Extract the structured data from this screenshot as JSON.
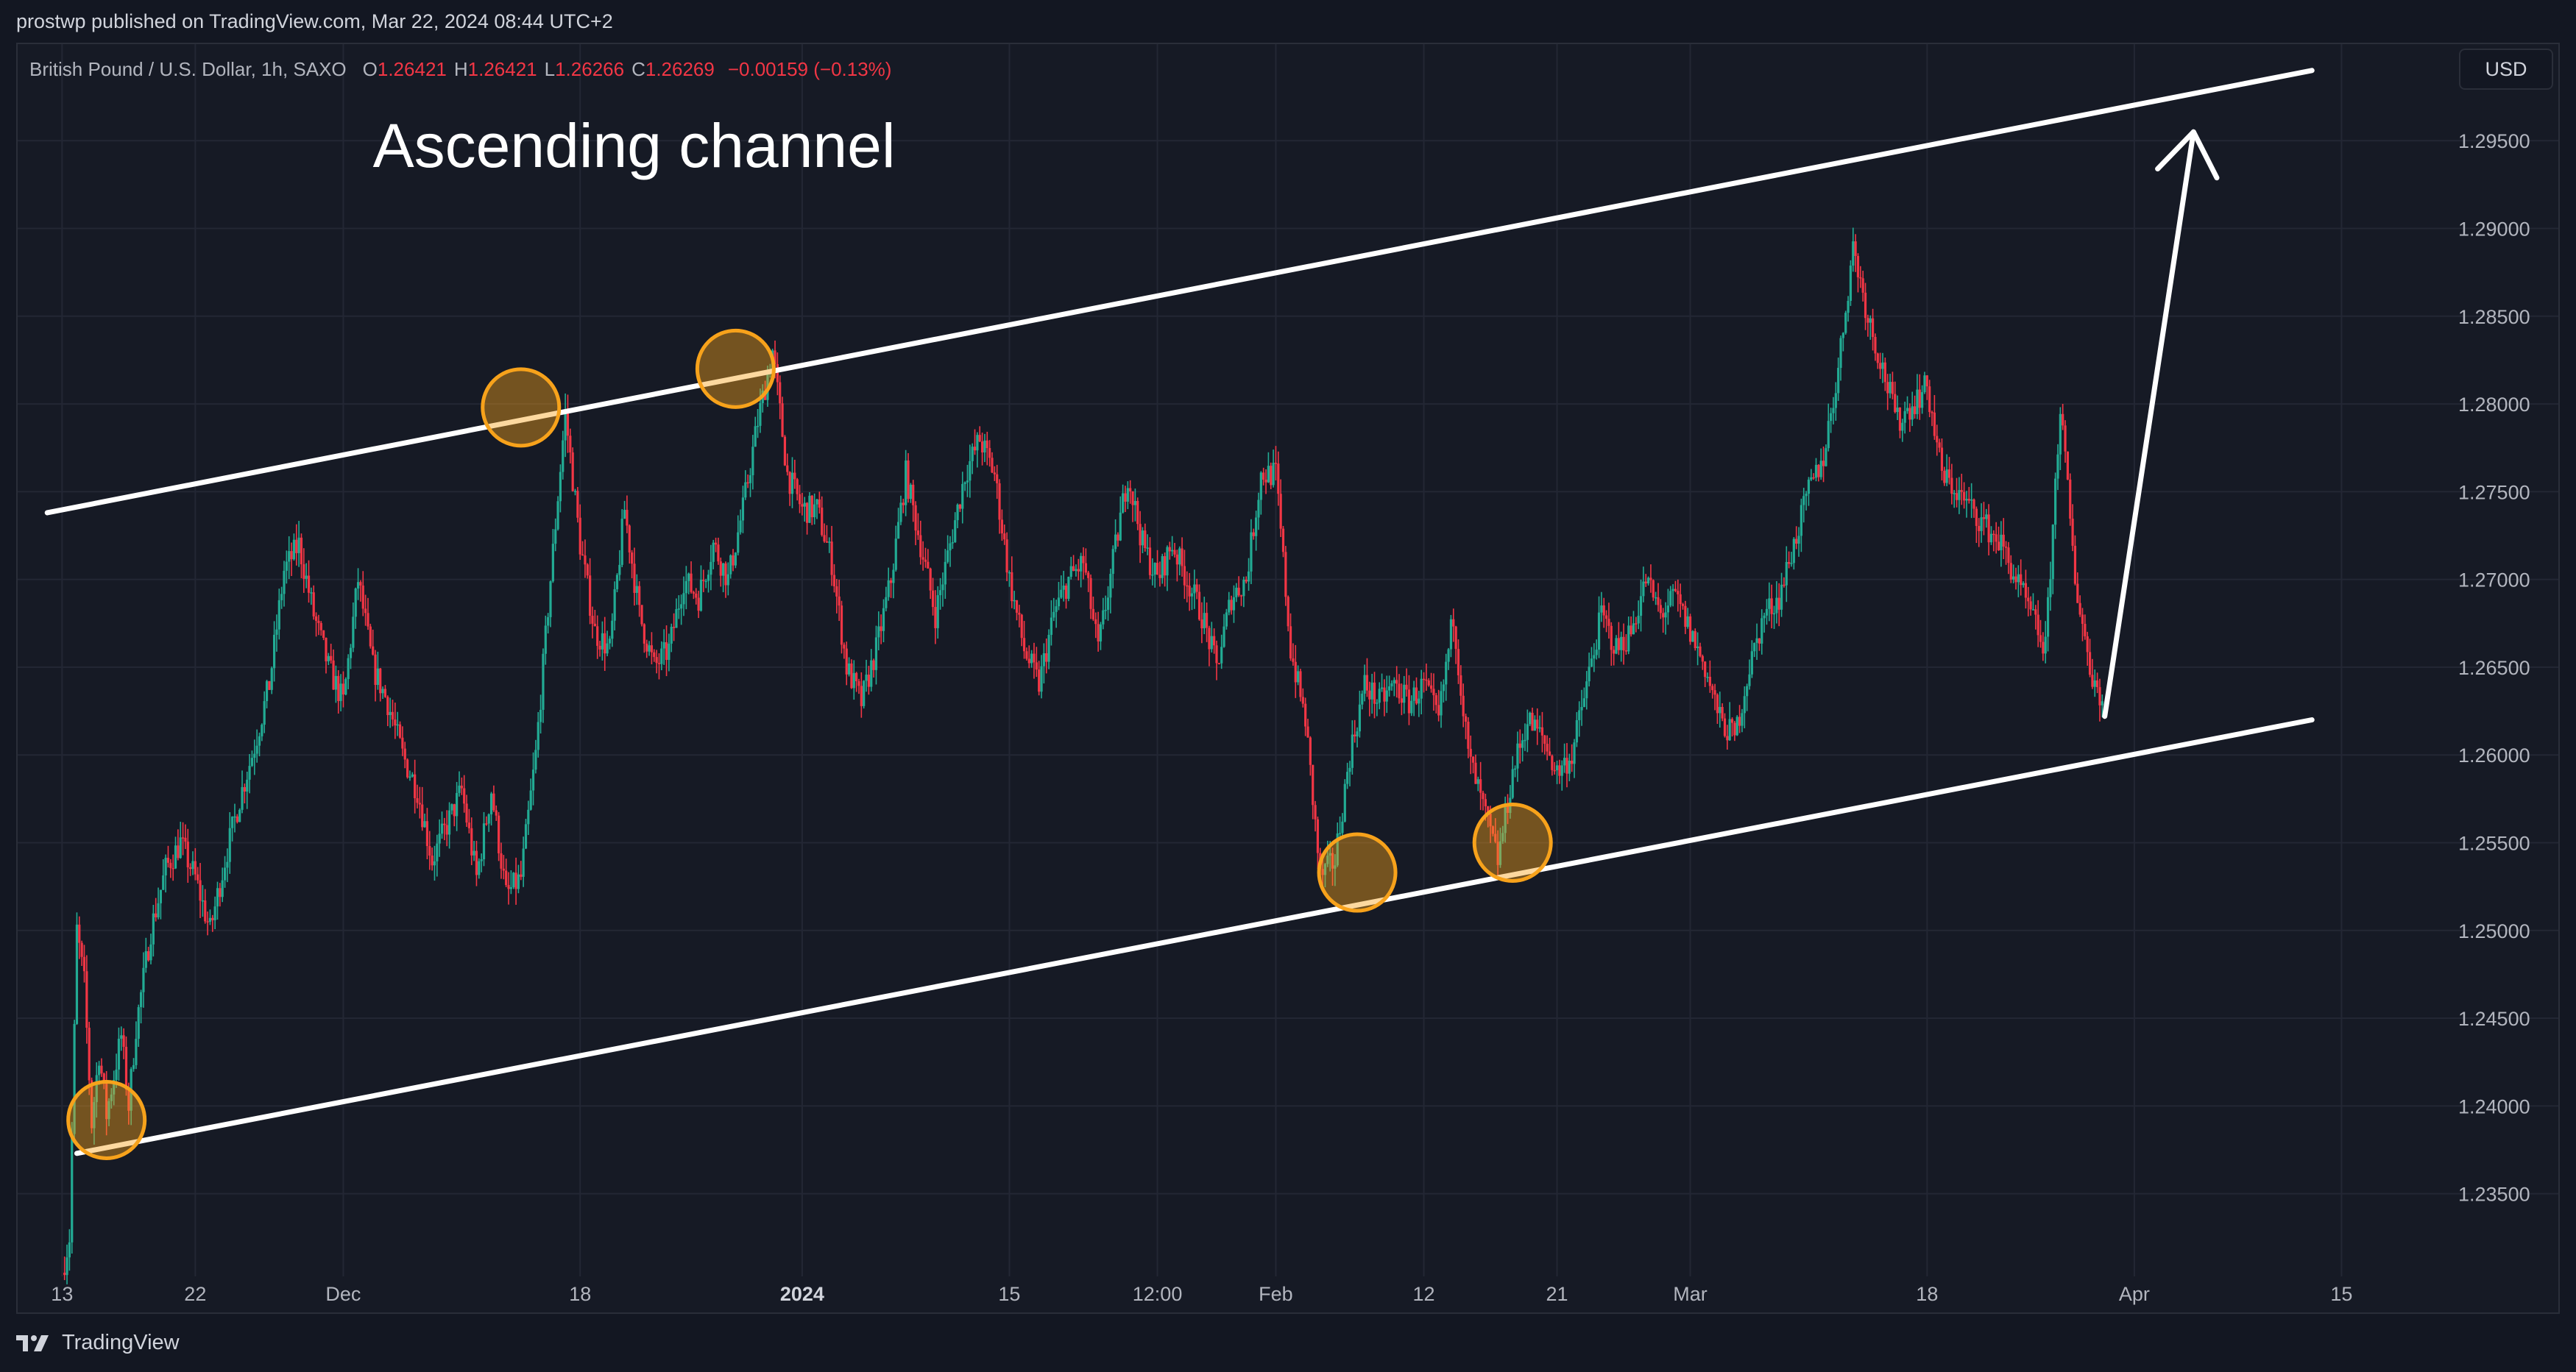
{
  "header": {
    "publisher_line": "prostwp published on TradingView.com, Mar 22, 2024 08:44 UTC+2"
  },
  "legend": {
    "symbol": "British Pound / U.S. Dollar, 1h, SAXO",
    "open_label": "O",
    "open": "1.26421",
    "high_label": "H",
    "high": "1.26421",
    "low_label": "L",
    "low": "1.26266",
    "close_label": "C",
    "close": "1.26269",
    "change": "−0.00159 (−0.13%)"
  },
  "currency_button": "USD",
  "footer": {
    "brand": "TradingView"
  },
  "colors": {
    "background": "#161a25",
    "grid": "#232734",
    "up_candle": "#22ab94",
    "down_candle": "#f23645",
    "channel_line": "#ffffff",
    "touch_circle": "#f7a21b"
  },
  "chart_data": {
    "type": "line",
    "title": "",
    "xlabel": "",
    "ylabel": "",
    "instrument": "GBPUSD 1h",
    "x_ticks": [
      {
        "label": "13",
        "bold": false
      },
      {
        "label": "22",
        "bold": false
      },
      {
        "label": "Dec",
        "bold": false
      },
      {
        "label": "18",
        "bold": false
      },
      {
        "label": "2024",
        "bold": true
      },
      {
        "label": "15",
        "bold": false
      },
      {
        "label": "12:00",
        "bold": false
      },
      {
        "label": "Feb",
        "bold": false
      },
      {
        "label": "12",
        "bold": false
      },
      {
        "label": "21",
        "bold": false
      },
      {
        "label": "Mar",
        "bold": false
      },
      {
        "label": "18",
        "bold": false
      },
      {
        "label": "Apr",
        "bold": false
      },
      {
        "label": "15",
        "bold": false
      }
    ],
    "x_tick_days": [
      -3,
      6,
      16,
      32,
      47,
      61,
      71,
      79,
      89,
      98,
      107,
      123,
      137,
      151
    ],
    "x_range_days": [
      -6,
      156
    ],
    "y_ticks": [
      "1.23500",
      "1.24000",
      "1.24500",
      "1.25000",
      "1.25500",
      "1.26000",
      "1.26500",
      "1.27000",
      "1.27500",
      "1.28000",
      "1.28500",
      "1.29000",
      "1.29500"
    ],
    "ylim": [
      1.2305,
      1.3005
    ],
    "price_path": [
      [
        -3,
        1.2305
      ],
      [
        -2.5,
        1.2325
      ],
      [
        -2,
        1.25
      ],
      [
        -1.5,
        1.247
      ],
      [
        -1,
        1.239
      ],
      [
        -0.5,
        1.243
      ],
      [
        0,
        1.2395
      ],
      [
        1,
        1.244
      ],
      [
        1.5,
        1.24
      ],
      [
        2,
        1.2445
      ],
      [
        3,
        1.25
      ],
      [
        4,
        1.2535
      ],
      [
        5,
        1.255
      ],
      [
        6,
        1.253
      ],
      [
        7,
        1.25
      ],
      [
        8,
        1.254
      ],
      [
        9,
        1.2575
      ],
      [
        10,
        1.2605
      ],
      [
        11,
        1.264
      ],
      [
        12,
        1.2705
      ],
      [
        13,
        1.272
      ],
      [
        14,
        1.268
      ],
      [
        15,
        1.265
      ],
      [
        16,
        1.263
      ],
      [
        17,
        1.27
      ],
      [
        18,
        1.265
      ],
      [
        19,
        1.263
      ],
      [
        20,
        1.26
      ],
      [
        21,
        1.258
      ],
      [
        22,
        1.254
      ],
      [
        23,
        1.256
      ],
      [
        24,
        1.258
      ],
      [
        25,
        1.253
      ],
      [
        26,
        1.258
      ],
      [
        27,
        1.252
      ],
      [
        28,
        1.253
      ],
      [
        29,
        1.26
      ],
      [
        30,
        1.27
      ],
      [
        31,
        1.2795
      ],
      [
        32,
        1.272
      ],
      [
        33,
        1.267
      ],
      [
        34,
        1.266
      ],
      [
        35,
        1.274
      ],
      [
        36,
        1.268
      ],
      [
        37,
        1.265
      ],
      [
        38,
        1.266
      ],
      [
        39,
        1.27
      ],
      [
        40,
        1.269
      ],
      [
        41,
        1.272
      ],
      [
        42,
        1.27
      ],
      [
        43,
        1.274
      ],
      [
        44,
        1.279
      ],
      [
        45,
        1.283
      ],
      [
        46,
        1.276
      ],
      [
        47,
        1.274
      ],
      [
        48,
        1.274
      ],
      [
        49,
        1.271
      ],
      [
        50,
        1.265
      ],
      [
        51,
        1.263
      ],
      [
        52,
        1.266
      ],
      [
        53,
        1.27
      ],
      [
        54,
        1.276
      ],
      [
        55,
        1.272
      ],
      [
        56,
        1.268
      ],
      [
        57,
        1.272
      ],
      [
        58,
        1.276
      ],
      [
        59,
        1.278
      ],
      [
        60,
        1.276
      ],
      [
        61,
        1.27
      ],
      [
        62,
        1.266
      ],
      [
        63,
        1.264
      ],
      [
        64,
        1.268
      ],
      [
        65,
        1.27
      ],
      [
        66,
        1.271
      ],
      [
        67,
        1.266
      ],
      [
        68,
        1.271
      ],
      [
        69,
        1.276
      ],
      [
        70,
        1.272
      ],
      [
        71,
        1.27
      ],
      [
        72,
        1.272
      ],
      [
        73,
        1.27
      ],
      [
        74,
        1.268
      ],
      [
        75,
        1.265
      ],
      [
        76,
        1.269
      ],
      [
        77,
        1.27
      ],
      [
        78,
        1.276
      ],
      [
        79,
        1.276
      ],
      [
        80,
        1.266
      ],
      [
        81,
        1.262
      ],
      [
        82,
        1.253
      ],
      [
        83,
        1.254
      ],
      [
        84,
        1.26
      ],
      [
        85,
        1.264
      ],
      [
        86,
        1.263
      ],
      [
        87,
        1.264
      ],
      [
        88,
        1.263
      ],
      [
        89,
        1.264
      ],
      [
        90,
        1.262
      ],
      [
        91,
        1.268
      ],
      [
        92,
        1.26
      ],
      [
        93,
        1.257
      ],
      [
        94,
        1.254
      ],
      [
        95,
        1.259
      ],
      [
        96,
        1.262
      ],
      [
        97,
        1.261
      ],
      [
        98,
        1.259
      ],
      [
        99,
        1.26
      ],
      [
        100,
        1.264
      ],
      [
        101,
        1.268
      ],
      [
        102,
        1.266
      ],
      [
        103,
        1.267
      ],
      [
        104,
        1.27
      ],
      [
        105,
        1.268
      ],
      [
        106,
        1.269
      ],
      [
        107,
        1.267
      ],
      [
        108,
        1.265
      ],
      [
        109,
        1.262
      ],
      [
        110,
        1.261
      ],
      [
        111,
        1.265
      ],
      [
        112,
        1.268
      ],
      [
        113,
        1.269
      ],
      [
        114,
        1.272
      ],
      [
        115,
        1.275
      ],
      [
        116,
        1.277
      ],
      [
        117,
        1.282
      ],
      [
        118,
        1.289
      ],
      [
        119,
        1.285
      ],
      [
        120,
        1.282
      ],
      [
        121,
        1.279
      ],
      [
        122,
        1.28
      ],
      [
        123,
        1.281
      ],
      [
        124,
        1.276
      ],
      [
        125,
        1.275
      ],
      [
        126,
        1.274
      ],
      [
        127,
        1.273
      ],
      [
        128,
        1.272
      ],
      [
        129,
        1.27
      ],
      [
        130,
        1.268
      ],
      [
        131,
        1.266
      ],
      [
        132,
        1.28
      ],
      [
        133,
        1.27
      ],
      [
        134,
        1.265
      ],
      [
        135,
        1.2627
      ]
    ],
    "channel": {
      "upper": {
        "from": [
          -4,
          1.2738
        ],
        "to": [
          149,
          1.299
        ]
      },
      "lower": {
        "from": [
          -2,
          1.2373
        ],
        "to": [
          149,
          1.262
        ]
      }
    },
    "projection_arrow": {
      "from": [
        135,
        1.2622
      ],
      "to": [
        141,
        1.2955
      ]
    },
    "touch_points": [
      {
        "x": 0,
        "y": 1.2392
      },
      {
        "x": 28,
        "y": 1.2798
      },
      {
        "x": 42.5,
        "y": 1.282
      },
      {
        "x": 84.5,
        "y": 1.2533
      },
      {
        "x": 95,
        "y": 1.255
      }
    ],
    "annotations": [
      {
        "text": "Ascending channel",
        "x": 18,
        "y": 1.2935
      }
    ]
  }
}
